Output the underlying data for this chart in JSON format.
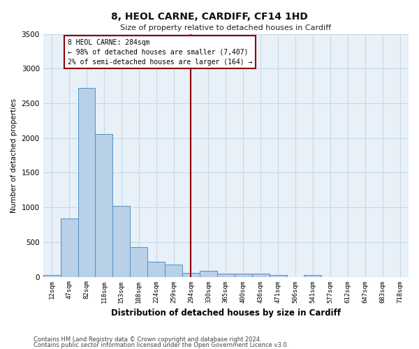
{
  "title": "8, HEOL CARNE, CARDIFF, CF14 1HD",
  "subtitle": "Size of property relative to detached houses in Cardiff",
  "xlabel": "Distribution of detached houses by size in Cardiff",
  "ylabel": "Number of detached properties",
  "bar_color": "#b8d0e8",
  "bar_edge_color": "#5590c0",
  "grid_color": "#c8d8e8",
  "background_color": "#e8f0f8",
  "vline_x": 8,
  "vline_color": "#8b0000",
  "annotation_text": "8 HEOL CARNE: 284sqm\n← 98% of detached houses are smaller (7,407)\n2% of semi-detached houses are larger (164) →",
  "annotation_box_color": "#8b0000",
  "categories": [
    "12sqm",
    "47sqm",
    "82sqm",
    "118sqm",
    "153sqm",
    "188sqm",
    "224sqm",
    "259sqm",
    "294sqm",
    "330sqm",
    "365sqm",
    "400sqm",
    "436sqm",
    "471sqm",
    "506sqm",
    "541sqm",
    "577sqm",
    "612sqm",
    "647sqm",
    "683sqm",
    "718sqm"
  ],
  "values": [
    25,
    840,
    2720,
    2060,
    1020,
    430,
    220,
    175,
    60,
    85,
    50,
    50,
    45,
    30,
    0,
    25,
    0,
    0,
    0,
    0,
    0
  ],
  "ylim": [
    0,
    3500
  ],
  "yticks": [
    0,
    500,
    1000,
    1500,
    2000,
    2500,
    3000,
    3500
  ],
  "footnote1": "Contains HM Land Registry data © Crown copyright and database right 2024.",
  "footnote2": "Contains public sector information licensed under the Open Government Licence v3.0."
}
